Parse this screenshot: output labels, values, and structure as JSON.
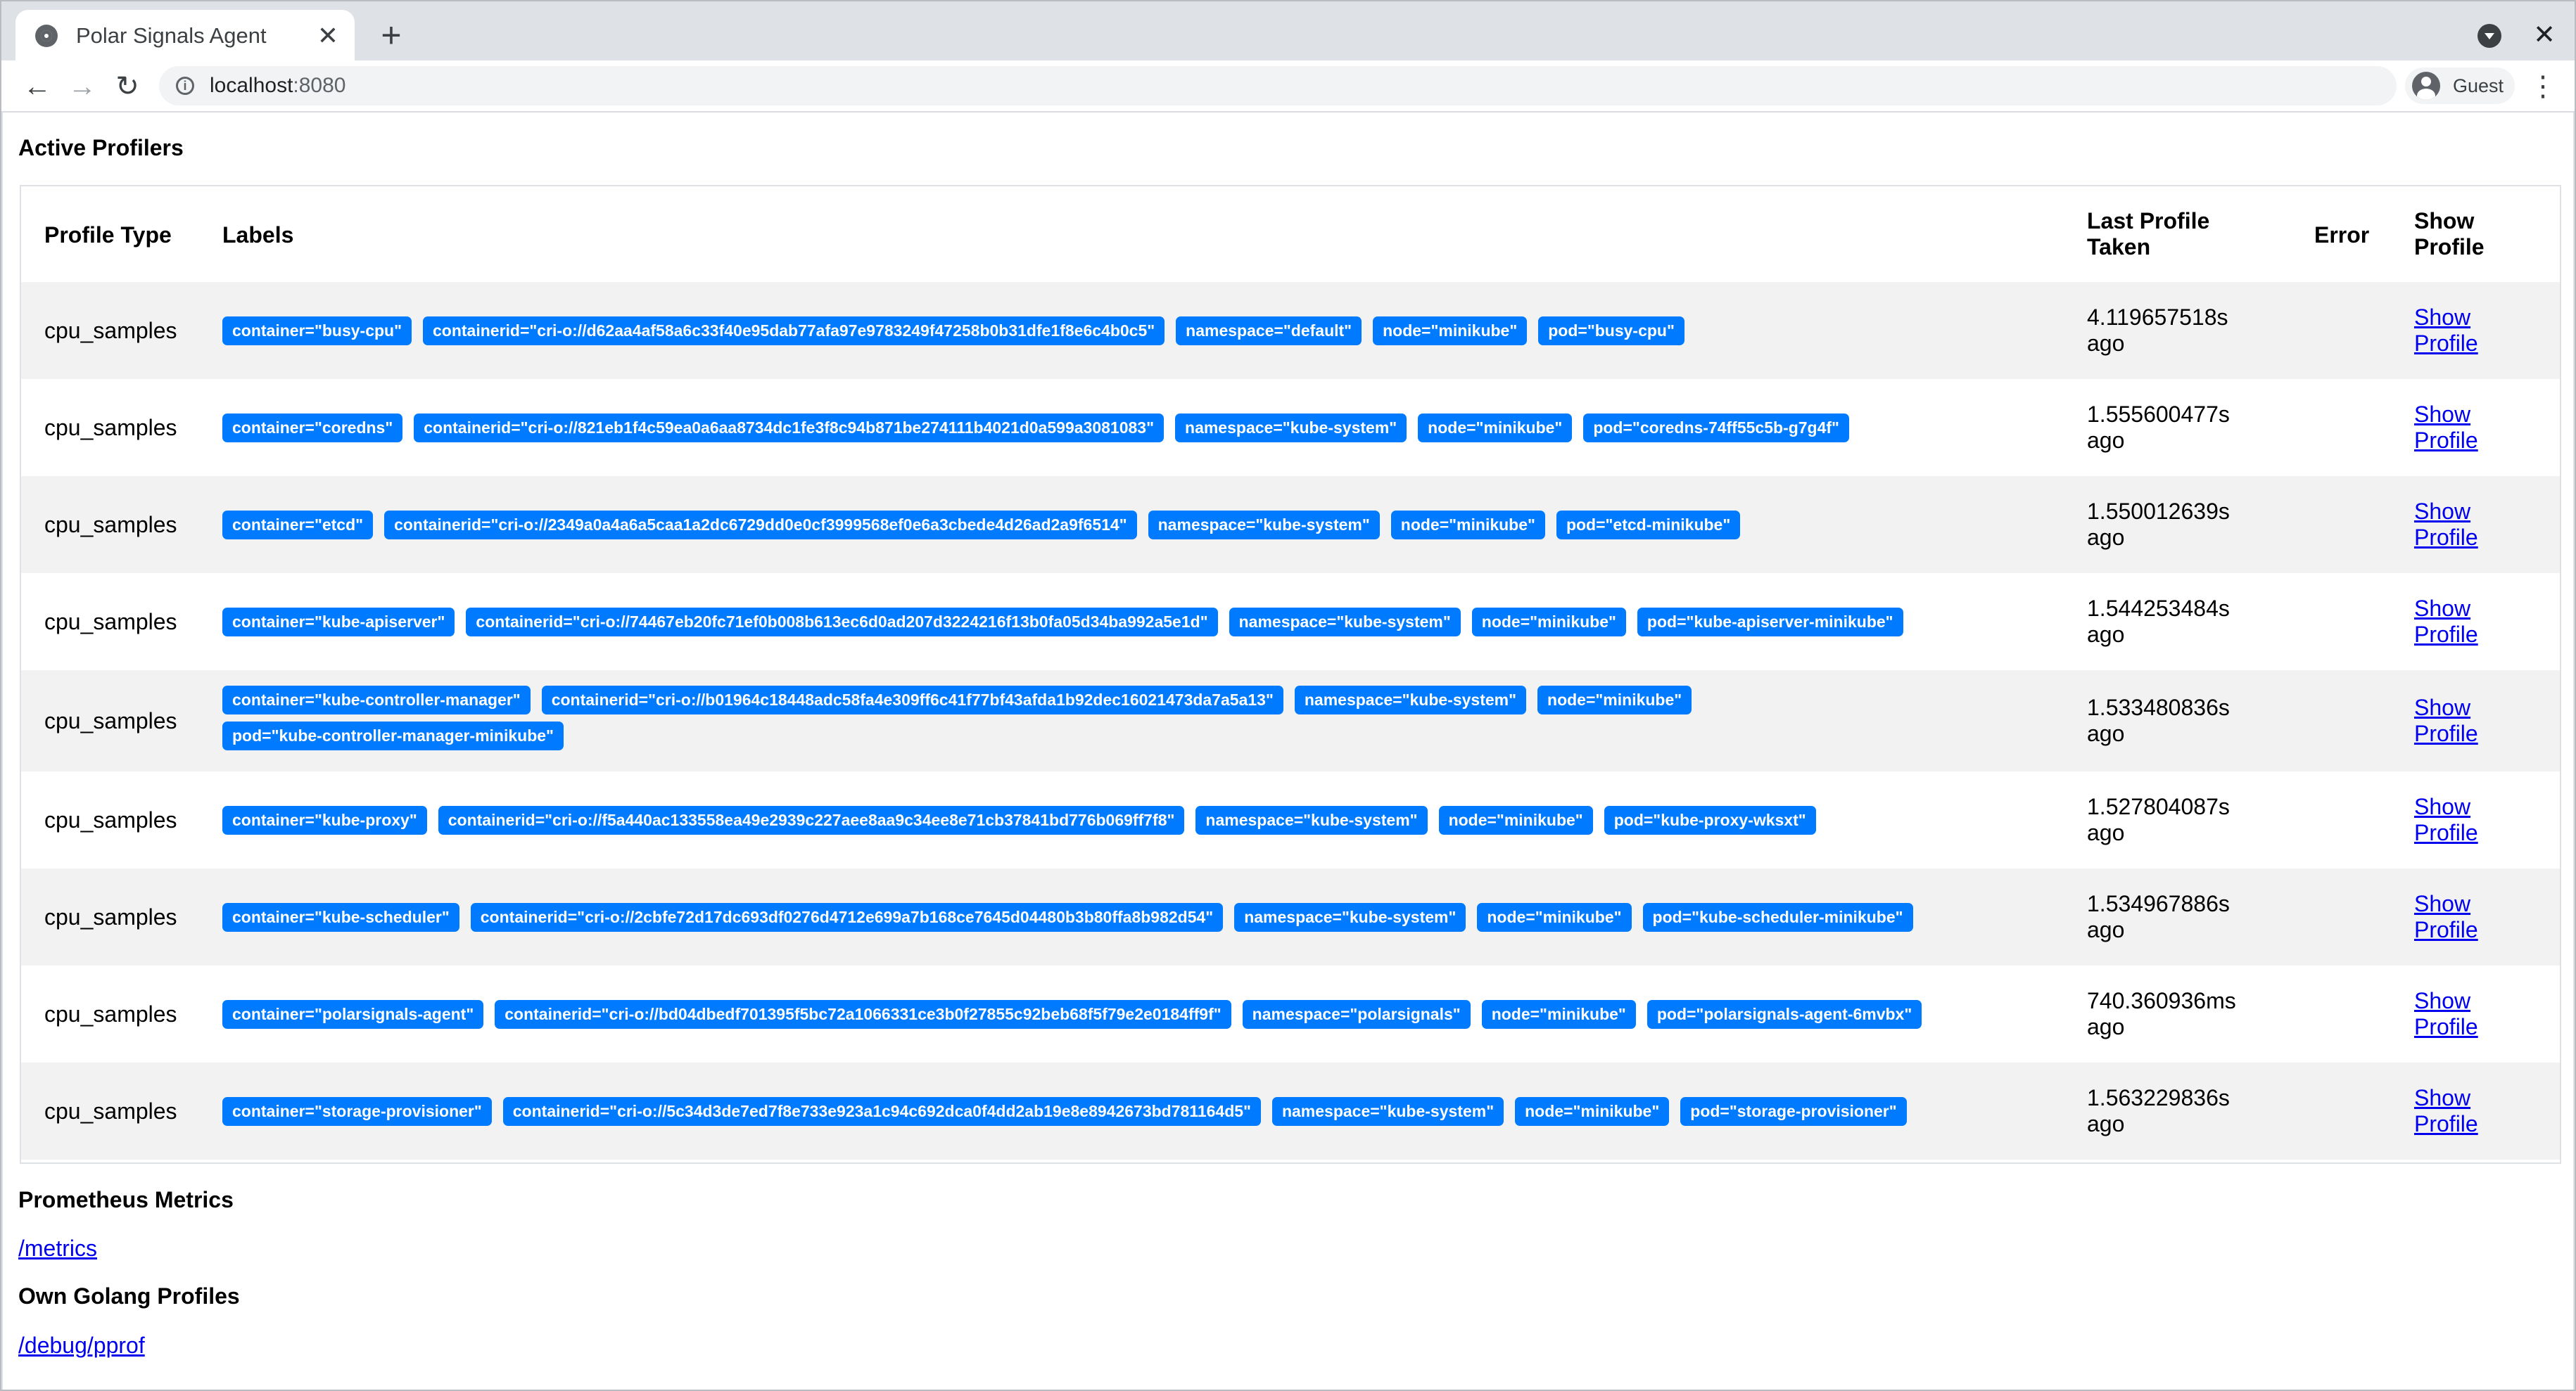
{
  "browser": {
    "tab_title": "Polar Signals Agent",
    "url_host": "localhost",
    "url_port": ":8080",
    "profile_label": "Guest",
    "icons": [
      "globe-icon",
      "close-icon",
      "plus-icon",
      "back-icon",
      "forward-icon",
      "reload-icon",
      "info-icon",
      "avatar-icon",
      "menu-icon"
    ]
  },
  "page": {
    "active_title": "Active Profilers",
    "table_headers": {
      "profile_type": "Profile Type",
      "labels": "Labels",
      "last_line1": "Last Profile",
      "last_line2": "Taken",
      "error": "Error",
      "show_line1": "Show",
      "show_line2": "Profile"
    },
    "rows": [
      {
        "type": "cpu_samples",
        "labels": [
          "container=\"busy-cpu\"",
          "containerid=\"cri-o://d62aa4af58a6c33f40e95dab77afa97e9783249f47258b0b31dfe1f8e6c4b0c5\"",
          "namespace=\"default\"",
          "node=\"minikube\"",
          "pod=\"busy-cpu\""
        ],
        "last_line1": "4.119657518s",
        "last_line2": "ago",
        "show_line1": "Show",
        "show_line2": "Profile"
      },
      {
        "type": "cpu_samples",
        "labels": [
          "container=\"coredns\"",
          "containerid=\"cri-o://821eb1f4c59ea0a6aa8734dc1fe3f8c94b871be274111b4021d0a599a3081083\"",
          "namespace=\"kube-system\"",
          "node=\"minikube\"",
          "pod=\"coredns-74ff55c5b-g7g4f\""
        ],
        "last_line1": "1.555600477s",
        "last_line2": "ago",
        "show_line1": "Show",
        "show_line2": "Profile"
      },
      {
        "type": "cpu_samples",
        "labels": [
          "container=\"etcd\"",
          "containerid=\"cri-o://2349a0a4a6a5caa1a2dc6729dd0e0cf3999568ef0e6a3cbede4d26ad2a9f6514\"",
          "namespace=\"kube-system\"",
          "node=\"minikube\"",
          "pod=\"etcd-minikube\""
        ],
        "last_line1": "1.550012639s",
        "last_line2": "ago",
        "show_line1": "Show",
        "show_line2": "Profile"
      },
      {
        "type": "cpu_samples",
        "labels": [
          "container=\"kube-apiserver\"",
          "containerid=\"cri-o://74467eb20fc71ef0b008b613ec6d0ad207d3224216f13b0fa05d34ba992a5e1d\"",
          "namespace=\"kube-system\"",
          "node=\"minikube\"",
          "pod=\"kube-apiserver-minikube\""
        ],
        "last_line1": "1.544253484s",
        "last_line2": "ago",
        "show_line1": "Show",
        "show_line2": "Profile"
      },
      {
        "type": "cpu_samples",
        "labels": [
          "container=\"kube-controller-manager\"",
          "containerid=\"cri-o://b01964c18448adc58fa4e309ff6c41f77bf43afda1b92dec16021473da7a5a13\"",
          "namespace=\"kube-system\"",
          "node=\"minikube\"",
          "pod=\"kube-controller-manager-minikube\""
        ],
        "last_line1": "1.533480836s",
        "last_line2": "ago",
        "show_line1": "Show",
        "show_line2": "Profile"
      },
      {
        "type": "cpu_samples",
        "labels": [
          "container=\"kube-proxy\"",
          "containerid=\"cri-o://f5a440ac133558ea49e2939c227aee8aa9c34ee8e71cb37841bd776b069ff7f8\"",
          "namespace=\"kube-system\"",
          "node=\"minikube\"",
          "pod=\"kube-proxy-wksxt\""
        ],
        "last_line1": "1.527804087s",
        "last_line2": "ago",
        "show_line1": "Show",
        "show_line2": "Profile"
      },
      {
        "type": "cpu_samples",
        "labels": [
          "container=\"kube-scheduler\"",
          "containerid=\"cri-o://2cbfe72d17dc693df0276d4712e699a7b168ce7645d04480b3b80ffa8b982d54\"",
          "namespace=\"kube-system\"",
          "node=\"minikube\"",
          "pod=\"kube-scheduler-minikube\""
        ],
        "last_line1": "1.534967886s",
        "last_line2": "ago",
        "show_line1": "Show",
        "show_line2": "Profile"
      },
      {
        "type": "cpu_samples",
        "labels": [
          "container=\"polarsignals-agent\"",
          "containerid=\"cri-o://bd04dbedf701395f5bc72a1066331ce3b0f27855c92beb68f5f79e2e0184ff9f\"",
          "namespace=\"polarsignals\"",
          "node=\"minikube\"",
          "pod=\"polarsignals-agent-6mvbx\""
        ],
        "last_line1": "740.360936ms",
        "last_line2": "ago",
        "show_line1": "Show",
        "show_line2": "Profile"
      },
      {
        "type": "cpu_samples",
        "labels": [
          "container=\"storage-provisioner\"",
          "containerid=\"cri-o://5c34d3de7ed7f8e733e923a1c94c692dca0f4dd2ab19e8e8942673bd781164d5\"",
          "namespace=\"kube-system\"",
          "node=\"minikube\"",
          "pod=\"storage-provisioner\""
        ],
        "last_line1": "1.563229836s",
        "last_line2": "ago",
        "show_line1": "Show",
        "show_line2": "Profile"
      }
    ],
    "metrics_title": "Prometheus Metrics",
    "metrics_link": "/metrics",
    "golang_title": "Own Golang Profiles",
    "pprof_link": "/debug/pprof"
  },
  "colors": {
    "badge": "#007bff",
    "link": "#0000ee",
    "stripe": "#f2f2f2"
  }
}
